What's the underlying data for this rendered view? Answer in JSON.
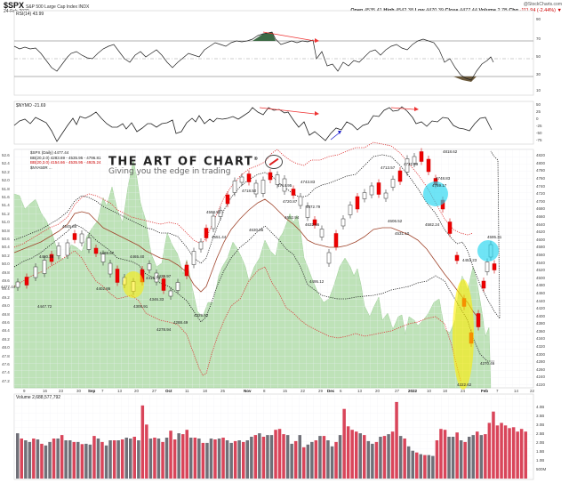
{
  "header": {
    "symbol": "$SPX",
    "name": "S&P 500 Large Cap Index  INDX",
    "date": "24-Feb-2022",
    "brand": "@StockCharts.com",
    "open_label": "Open",
    "open": "4535.41",
    "high_label": "High",
    "high": "4542.38",
    "low_label": "Low",
    "low": "4470.39",
    "close_label": "Close",
    "close": "4477.44",
    "volume_label": "Volume",
    "volume": "2.7B",
    "chg_label": "Chg",
    "chg": "-111.94 (-2.44%)"
  },
  "panels": {
    "rsi_label": "RSI(14) 43.99",
    "nymo_label": "$NYMO -21.69",
    "price_legend": [
      "$SPX (Daily) 4477.44",
      "BB(20,2.0) 4283.69 - 4535.95 - 4796.81",
      "BB(20,3.0) 4154.66 - 4535.95 - 4925.24",
      "$NYA50R ..."
    ],
    "volume_label": "Volume 2,688,577,792"
  },
  "logo": {
    "title": "THE ART OF CHART",
    "reg": "®",
    "tagline": "Giving you the edge in trading"
  },
  "chart_data": [
    {
      "type": "line",
      "title": "RSI(14)",
      "value": 43.99,
      "ylim": [
        0,
        100
      ],
      "y_ticks": [
        90,
        70,
        50,
        30,
        10
      ],
      "reference_lines": [
        70,
        50,
        30
      ],
      "annotations": [
        "Red arrow showing negative divergence from mid-Nov high toward early Dec"
      ]
    },
    {
      "type": "line",
      "title": "$NYMO",
      "value": -21.69,
      "y_ticks": [
        50,
        25,
        0,
        -25,
        -50,
        -75
      ],
      "annotations": [
        "Red arrow negative divergence Nov",
        "Blue arrow positive divergence early Dec",
        "Red arrow early Jan"
      ]
    },
    {
      "type": "candlestick",
      "title": "$SPX (Daily) 4477.44",
      "ylim": [
        4220,
        4830
      ],
      "y_ticks_right": [
        4820,
        4800,
        4780,
        4760,
        4740,
        4720,
        4700,
        4680,
        4660,
        4640,
        4620,
        4600,
        4580,
        4560,
        4540,
        4520,
        4500,
        4480,
        4460,
        4440,
        4420,
        4400,
        4380,
        4360,
        4340,
        4320,
        4300,
        4280,
        4260,
        4240,
        4220
      ],
      "y_ticks_left": [
        52.6,
        52.4,
        52.2,
        52.0,
        51.8,
        51.6,
        51.4,
        51.2,
        51.0,
        50.8,
        50.6,
        50.4,
        50.2,
        50.0,
        49.8,
        49.6,
        49.4,
        49.2,
        49.0,
        48.8,
        48.6,
        48.4,
        48.2,
        48.0,
        47.8,
        47.6,
        47.4,
        47.2
      ],
      "price_tag_left": "4477.44",
      "x_labels": [
        "9",
        "16",
        "23",
        "30",
        "Sep",
        "7",
        "13",
        "20",
        "27",
        "Oct",
        "11",
        "18",
        "25",
        "Nov",
        "8",
        "15",
        "22",
        "29",
        "Dec",
        "6",
        "13",
        "20",
        "27",
        "2022",
        "10",
        "18",
        "24",
        "Feb",
        "7",
        "14",
        "22"
      ],
      "price_labels": [
        {
          "label": "4480.26",
          "approx_date": "Aug 2"
        },
        {
          "label": "4545.85",
          "approx_date": "Sep 2"
        },
        {
          "label": "4488.87",
          "approx_date": "Sep 13"
        },
        {
          "label": "4447.72",
          "approx_date": "Aug 19"
        },
        {
          "label": "4402.86",
          "approx_date": "Sep 14"
        },
        {
          "label": "4465.40",
          "approx_date": "Sep 23"
        },
        {
          "label": "4305.91",
          "approx_date": "Sep 20"
        },
        {
          "label": "4346.33",
          "approx_date": "Sep 30"
        },
        {
          "label": "4429.97",
          "approx_date": "Oct 7"
        },
        {
          "label": "4415.73",
          "approx_date": "Oct 5"
        },
        {
          "label": "4278.94",
          "approx_date": "Oct 4"
        },
        {
          "label": "4288.49",
          "approx_date": "Oct 6"
        },
        {
          "label": "4329.92",
          "approx_date": "Oct 13"
        },
        {
          "label": "4598.53",
          "approx_date": "Oct 26"
        },
        {
          "label": "4551.44",
          "approx_date": "Oct 27"
        },
        {
          "label": "4718.50",
          "approx_date": "Nov 5"
        },
        {
          "label": "4630.86",
          "approx_date": "Nov 10"
        },
        {
          "label": "4714.95",
          "approx_date": "Nov 16"
        },
        {
          "label": "4743.83",
          "approx_date": "Nov 22"
        },
        {
          "label": "4720.87",
          "approx_date": "Nov 23"
        },
        {
          "label": "4672.79",
          "approx_date": "Nov 23"
        },
        {
          "label": "4652.94",
          "approx_date": "Nov 26"
        },
        {
          "label": "4632.66",
          "approx_date": "Nov 26"
        },
        {
          "label": "4495.12",
          "approx_date": "Dec 1"
        },
        {
          "label": "4713.57",
          "approx_date": "Dec 10"
        },
        {
          "label": "4731.99",
          "approx_date": "Dec 13"
        },
        {
          "label": "4606.52",
          "approx_date": "Dec 16"
        },
        {
          "label": "4531.10",
          "approx_date": "Dec 20"
        },
        {
          "label": "4818.62",
          "approx_date": "Jan 4"
        },
        {
          "label": "4769.17",
          "approx_date": "Jan 5"
        },
        {
          "label": "4748.83",
          "approx_date": "Jan 12"
        },
        {
          "label": "4582.24",
          "approx_date": "Jan 14"
        },
        {
          "label": "4453.23",
          "approx_date": "Jan 21"
        },
        {
          "label": "4222.62",
          "approx_date": "Jan 24"
        },
        {
          "label": "4270.46",
          "approx_date": "Jan 28"
        },
        {
          "label": "4595.31",
          "approx_date": "Feb 2"
        }
      ],
      "overlays": [
        "BB(20,2.0) black dotted",
        "BB(20,3.0) red dotted",
        "20 MA brown",
        "$NYA50R green area (left axis)"
      ],
      "highlights": [
        "yellow ellipse Sep 20",
        "yellow ellipse Jan 24",
        "cyan circle Jan 12",
        "cyan circle Feb 2"
      ]
    },
    {
      "type": "bar",
      "title": "Volume 2,688,577,792",
      "y_ticks": [
        "4.0B",
        "3.5B",
        "3.0B",
        "2.5B",
        "2.0B",
        "1.5B",
        "1.0B",
        "500M"
      ],
      "values_billions": [
        2.6,
        2.3,
        2.2,
        2.1,
        2.3,
        2.25,
        2.0,
        1.9,
        2.1,
        2.3,
        2.3,
        2.5,
        2.2,
        2.2,
        2.1,
        2.1,
        1.98,
        2.0,
        1.95,
        2.45,
        2.3,
        2.1,
        1.9,
        2.2,
        2.2,
        2.2,
        2.25,
        2.35,
        2.3,
        2.4,
        2.2,
        4.2,
        3.1,
        2.3,
        2.35,
        2.3,
        2.1,
        2.35,
        2.75,
        2.25,
        2.6,
        2.55,
        2.8,
        2.35,
        2.35,
        2.3,
        2.05,
        2.05,
        2.3,
        2.25,
        2.3,
        2.35,
        2.2,
        2.05,
        2.15,
        2.2,
        2.1,
        2.2,
        2.4,
        2.5,
        2.6,
        2.4,
        2.5,
        2.5,
        2.8,
        2.85,
        2.55,
        2.5,
        2.0,
        2.15,
        2.5,
        1.8,
        1.95,
        2.1,
        2.2,
        2.45,
        2.45,
        2.2,
        1.85,
        2.1,
        2.5,
        4.0,
        3.0,
        2.8,
        2.7,
        2.6,
        2.5,
        2.15,
        2.0,
        2.1,
        2.4,
        2.45,
        2.55,
        2.7,
        4.4,
        2.45,
        2.3,
        1.85,
        1.6,
        1.5,
        1.4,
        1.35,
        1.35,
        1.3,
        2.2,
        2.85,
        2.8,
        2.4,
        2.4,
        2.65,
        2.2,
        2.1,
        2.4,
        2.5,
        2.7,
        2.5,
        2.55,
        3.2,
        3.85,
        3.05,
        3.2,
        3.05,
        2.9,
        2.95,
        2.7,
        2.85,
        2.7
      ],
      "colors": {
        "down": "#d9455a",
        "up": "#707078"
      }
    }
  ]
}
